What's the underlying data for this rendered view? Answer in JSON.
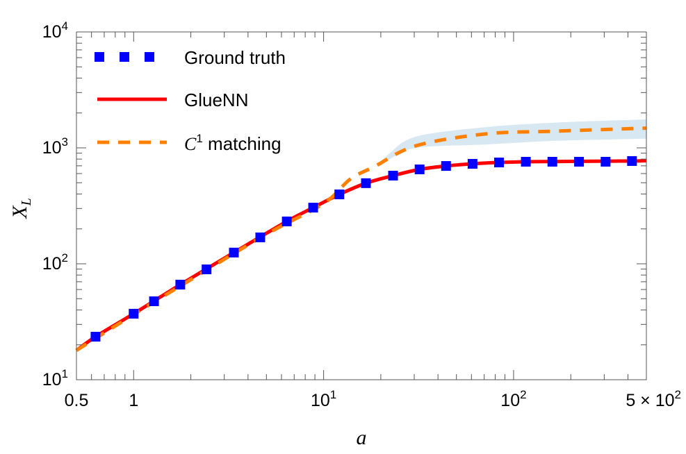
{
  "chart_data": {
    "type": "line",
    "xlabel": "a",
    "ylabel": "X_L",
    "xscale": "log",
    "yscale": "log",
    "xlim": [
      0.5,
      500
    ],
    "ylim": [
      10,
      10000
    ],
    "x_ticks": [
      {
        "value": 0.5,
        "label": "0.5"
      },
      {
        "value": 1,
        "label": "1"
      },
      {
        "value": 10,
        "base": "10",
        "exp": "1"
      },
      {
        "value": 100,
        "base": "10",
        "exp": "2"
      },
      {
        "value": 500,
        "base": "5 × 10",
        "exp": "2"
      }
    ],
    "y_ticks": [
      {
        "value": 10,
        "base": "10",
        "exp": "1"
      },
      {
        "value": 100,
        "base": "10",
        "exp": "2"
      },
      {
        "value": 1000,
        "base": "10",
        "exp": "3"
      },
      {
        "value": 10000,
        "base": "10",
        "exp": "4"
      }
    ],
    "grid": false,
    "legend": "top-left",
    "series": [
      {
        "name": "Ground truth",
        "style": "squares",
        "color": "#0000ff",
        "x": [
          0.63,
          1.0,
          1.28,
          1.76,
          2.42,
          3.37,
          4.64,
          6.4,
          8.81,
          12.1,
          16.7,
          23.2,
          32.0,
          44.1,
          60.8,
          83.8,
          116,
          160,
          221,
          305,
          420
        ],
        "y": [
          23.5,
          37.1,
          47.5,
          66.1,
          89.5,
          125,
          169,
          232,
          305,
          397,
          496,
          576,
          652,
          698,
          728,
          748,
          759,
          759,
          759,
          759,
          770
        ]
      },
      {
        "name": "GlueNN",
        "style": "solid",
        "color": "#ff0000",
        "x": [
          0.5,
          0.63,
          1.0,
          1.76,
          3.37,
          6.4,
          8.81,
          12.1,
          16.7,
          23.2,
          32.0,
          44.1,
          60.8,
          83.8,
          116,
          160,
          221,
          305,
          420,
          500
        ],
        "y": [
          17.9,
          23.5,
          37.1,
          66.1,
          125,
          232,
          305,
          397,
          496,
          576,
          652,
          698,
          728,
          748,
          759,
          762,
          765,
          768,
          770,
          775
        ]
      },
      {
        "name": "C¹ matching",
        "legend_main": "C",
        "legend_sup": "1",
        "legend_rest": " matching",
        "style": "dashed",
        "color": "#ff8000",
        "x": [
          0.5,
          1.0,
          2.0,
          5.0,
          10.0,
          13.8,
          18.5,
          30.6,
          71.5,
          166,
          500
        ],
        "y": [
          17.9,
          36.5,
          73,
          180,
          331,
          537,
          689,
          1042,
          1320,
          1393,
          1480
        ],
        "band": {
          "color": "#d7e8f3",
          "x": [
            19,
            22,
            30.6,
            71.5,
            166,
            500
          ],
          "lower": [
            690,
            790,
            1000,
            1070,
            1150,
            1200
          ],
          "upper": [
            690,
            883,
            1250,
            1510,
            1650,
            1760
          ]
        }
      }
    ]
  }
}
